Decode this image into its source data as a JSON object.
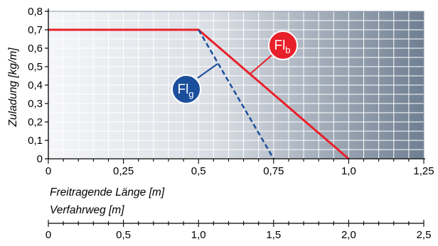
{
  "chart_data": {
    "type": "line",
    "ylabel": "Zuladung [kg/m]",
    "xlabel": "Freitragende Länge [m]",
    "xlabel2": "Verfahrweg [m]",
    "xlim": [
      0,
      1.25
    ],
    "ylim": [
      0,
      0.8
    ],
    "x_ticks": [
      "0",
      "0,25",
      "0,5",
      "0,75",
      "1,0",
      "1,25"
    ],
    "x_ticks_values": [
      0,
      0.25,
      0.5,
      0.75,
      1.0,
      1.25
    ],
    "y_ticks": [
      "0",
      "0,1",
      "0,2",
      "0,3",
      "0,4",
      "0,5",
      "0,6",
      "0,7",
      "0,8"
    ],
    "y_ticks_values": [
      0,
      0.1,
      0.2,
      0.3,
      0.4,
      0.5,
      0.6,
      0.7,
      0.8
    ],
    "x2_lim": [
      0,
      2.5
    ],
    "x2_ticks": [
      "0",
      "0,5",
      "1,0",
      "1,5",
      "2,0",
      "2,5"
    ],
    "x2_ticks_values": [
      0,
      0.5,
      1.0,
      1.5,
      2.0,
      2.5
    ],
    "grid": true,
    "series": [
      {
        "label_main": "Fl",
        "label_sub": "b",
        "color": "#e8202a",
        "dash": false,
        "x": [
          0,
          0.5,
          1.0
        ],
        "y": [
          0.7,
          0.7,
          0.0
        ]
      },
      {
        "label_main": "Fl",
        "label_sub": "g",
        "color": "#1b4f9c",
        "dash": true,
        "x": [
          0.5,
          0.75
        ],
        "y": [
          0.7,
          0.0
        ]
      }
    ]
  }
}
